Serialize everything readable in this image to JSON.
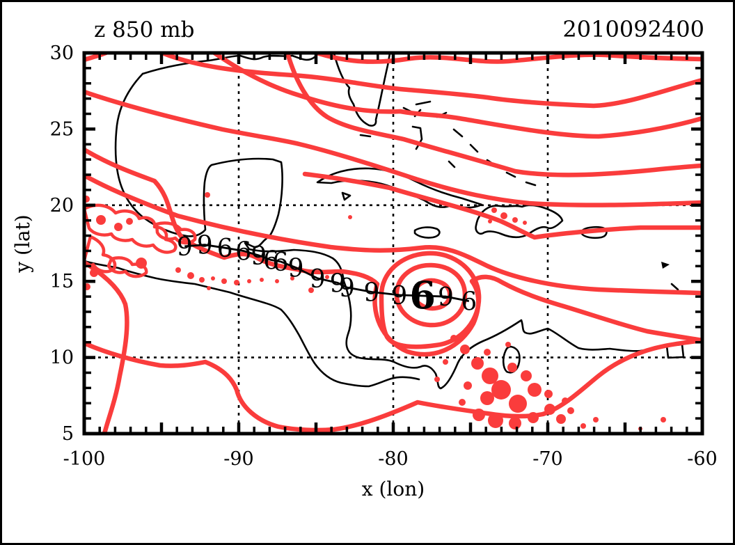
{
  "figure": {
    "title": "z 850 mb",
    "datetime": "2010092400",
    "xlabel": "x (lon)",
    "ylabel": "y (lat)"
  },
  "colors": {
    "contour_red": "#fa3c3c",
    "coast_black": "#000000",
    "current_position_blue": "#0000dd"
  },
  "axes": {
    "x_tick_labels": [
      "-100",
      "-90",
      "-80",
      "-70",
      "-60"
    ],
    "y_tick_labels": [
      "30",
      "25",
      "20",
      "15",
      "10",
      "5"
    ]
  },
  "chart_data": {
    "type": "contour_map_with_storm_track",
    "title": "z 850 mb",
    "datetime_label": "2010092400",
    "xlabel": "x (lon)",
    "ylabel": "y (lat)",
    "xlim": [
      -100,
      -60
    ],
    "ylim": [
      5,
      30
    ],
    "x_ticks_major": [
      -100,
      -90,
      -80,
      -70,
      -60
    ],
    "y_ticks_major": [
      30,
      25,
      20,
      15,
      10,
      5
    ],
    "minor_tick_interval_deg": 1,
    "major_tick_interval_deg": 5,
    "gridlines": {
      "x": [
        -90,
        -80,
        -70
      ],
      "y": [
        20,
        10
      ]
    },
    "grid_style": "dotted",
    "field_description": "850 mb geopotential height contours (red, unlabeled levels) over Caribbean / Central America basemap with closed low centered near lon -78, lat 14",
    "storm_track": {
      "description": "Tropical cyclone track plotted with 9/6 storm symbols connected by a black line; bold blue symbol marks position at 2010092400",
      "points": [
        {
          "lon": -93.5,
          "lat": 17.3,
          "symbol": "9",
          "current": false
        },
        {
          "lon": -92.2,
          "lat": 17.4,
          "symbol": "9",
          "current": false
        },
        {
          "lon": -90.9,
          "lat": 17.2,
          "symbol": "6",
          "current": false
        },
        {
          "lon": -89.7,
          "lat": 17.0,
          "symbol": "6",
          "current": false
        },
        {
          "lon": -88.7,
          "lat": 16.7,
          "symbol": "9",
          "current": false
        },
        {
          "lon": -87.9,
          "lat": 16.4,
          "symbol": "6",
          "current": false
        },
        {
          "lon": -87.3,
          "lat": 16.3,
          "symbol": "6",
          "current": false
        },
        {
          "lon": -86.3,
          "lat": 15.9,
          "symbol": "9",
          "current": false
        },
        {
          "lon": -84.9,
          "lat": 15.2,
          "symbol": "9",
          "current": false
        },
        {
          "lon": -83.6,
          "lat": 14.9,
          "symbol": "9",
          "current": false
        },
        {
          "lon": -83.0,
          "lat": 14.6,
          "symbol": "9",
          "current": false
        },
        {
          "lon": -81.4,
          "lat": 14.3,
          "symbol": "9",
          "current": false
        },
        {
          "lon": -79.6,
          "lat": 14.1,
          "symbol": "9",
          "current": false
        },
        {
          "lon": -78.1,
          "lat": 14.05,
          "symbol": "6",
          "current": true
        },
        {
          "lon": -76.6,
          "lat": 14.0,
          "symbol": "9",
          "current": false
        },
        {
          "lon": -75.1,
          "lat": 13.7,
          "symbol": "6",
          "current": false
        }
      ]
    }
  }
}
